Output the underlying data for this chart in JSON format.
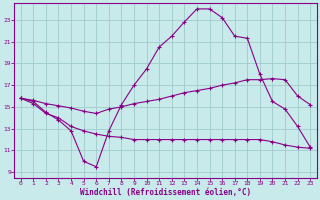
{
  "xlabel": "Windchill (Refroidissement éolien,°C)",
  "bg_color": "#c8eaea",
  "grid_color": "#a0cccc",
  "line_color": "#880088",
  "spine_color": "#880088",
  "x_ticks": [
    0,
    1,
    2,
    3,
    4,
    5,
    6,
    7,
    8,
    9,
    10,
    11,
    12,
    13,
    14,
    15,
    16,
    17,
    18,
    19,
    20,
    21,
    22,
    23
  ],
  "y_ticks": [
    9,
    11,
    13,
    15,
    17,
    19,
    21,
    23
  ],
  "xlim": [
    -0.5,
    23.5
  ],
  "ylim": [
    8.5,
    24.5
  ],
  "line1_x": [
    0,
    1,
    2,
    3,
    4,
    5,
    6,
    7,
    8,
    9,
    10,
    11,
    12,
    13,
    14,
    15,
    16,
    17,
    18,
    19,
    20,
    21,
    22,
    23
  ],
  "line1_y": [
    15.8,
    15.5,
    14.5,
    13.8,
    12.8,
    10.0,
    9.5,
    12.8,
    15.2,
    17.0,
    18.5,
    20.5,
    21.5,
    22.8,
    24.0,
    24.0,
    23.2,
    21.5,
    21.3,
    18.0,
    15.5,
    14.8,
    13.2,
    11.3
  ],
  "line2_x": [
    0,
    1,
    2,
    3,
    4,
    5,
    6,
    7,
    8,
    9,
    10,
    11,
    12,
    13,
    14,
    15,
    16,
    17,
    18,
    19,
    20,
    21,
    22,
    23
  ],
  "line2_y": [
    15.8,
    15.6,
    15.3,
    15.1,
    14.9,
    14.6,
    14.4,
    14.8,
    15.0,
    15.3,
    15.5,
    15.7,
    16.0,
    16.3,
    16.5,
    16.7,
    17.0,
    17.2,
    17.5,
    17.5,
    17.6,
    17.5,
    16.0,
    15.2
  ],
  "line3_x": [
    0,
    1,
    2,
    3,
    4,
    5,
    6,
    7,
    8,
    9,
    10,
    11,
    12,
    13,
    14,
    15,
    16,
    17,
    18,
    19,
    20,
    21,
    22,
    23
  ],
  "line3_y": [
    15.8,
    15.3,
    14.4,
    14.0,
    13.2,
    12.8,
    12.5,
    12.3,
    12.2,
    12.0,
    12.0,
    12.0,
    12.0,
    12.0,
    12.0,
    12.0,
    12.0,
    12.0,
    12.0,
    12.0,
    11.8,
    11.5,
    11.3,
    11.2
  ]
}
